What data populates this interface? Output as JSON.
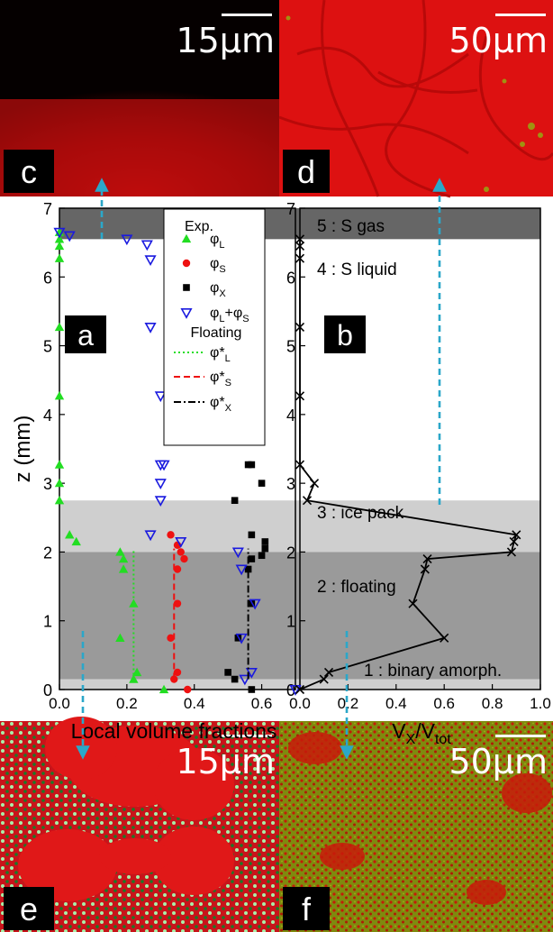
{
  "micrographs": {
    "c": {
      "label": "c",
      "scale": "15μm"
    },
    "d": {
      "label": "d",
      "scale": "50μm"
    },
    "e": {
      "label": "e",
      "scale": "15μm"
    },
    "f": {
      "label": "f",
      "scale": "50μm"
    }
  },
  "colors": {
    "phi_L": "#22dd22",
    "phi_S": "#ee1111",
    "phi_X": "#000000",
    "phi_LS": "#1a1adf",
    "arrow": "#2ba7c9",
    "zone_gas": "#666666",
    "zone_ice": "#cfcfcf",
    "zone_float": "#9a9a9a",
    "zone_amorph": "#cfcfcf"
  },
  "chart_data": [
    {
      "type": "scatter",
      "panel_label": "a",
      "xlabel": "Local volume fractions",
      "ylabel": "z (mm)",
      "xlim": [
        0,
        0.7
      ],
      "ylim": [
        0,
        7
      ],
      "xticks": [
        "0.0",
        "0.2",
        "0.4",
        "0.6"
      ],
      "yticks": [
        "0",
        "1",
        "2",
        "3",
        "4",
        "5",
        "6",
        "7"
      ],
      "legend": {
        "title_exp": "Exp.",
        "title_floating": "Floating",
        "entries": [
          "φL",
          "φS",
          "φX",
          "φL+φS",
          "φ*L",
          "φ*S",
          "φ*X"
        ]
      },
      "series": [
        {
          "name": "φL",
          "marker": "triangle-up",
          "points": [
            [
              0.0,
              6.65
            ],
            [
              0.0,
              6.55
            ],
            [
              0.0,
              6.45
            ],
            [
              0.0,
              6.27
            ],
            [
              0.0,
              5.27
            ],
            [
              0.0,
              4.27
            ],
            [
              0.0,
              3.27
            ],
            [
              0.0,
              3.0
            ],
            [
              0.0,
              2.75
            ],
            [
              0.03,
              2.25
            ],
            [
              0.05,
              2.15
            ],
            [
              0.18,
              2.0
            ],
            [
              0.19,
              1.9
            ],
            [
              0.19,
              1.75
            ],
            [
              0.22,
              1.25
            ],
            [
              0.18,
              0.75
            ],
            [
              0.23,
              0.25
            ],
            [
              0.22,
              0.15
            ],
            [
              0.31,
              0.0
            ]
          ]
        },
        {
          "name": "φS",
          "marker": "circle",
          "points": [
            [
              0.33,
              2.25
            ],
            [
              0.35,
              2.1
            ],
            [
              0.36,
              2.0
            ],
            [
              0.37,
              1.9
            ],
            [
              0.35,
              1.75
            ],
            [
              0.35,
              1.25
            ],
            [
              0.33,
              0.75
            ],
            [
              0.35,
              0.25
            ],
            [
              0.34,
              0.15
            ],
            [
              0.38,
              0.0
            ]
          ]
        },
        {
          "name": "φX",
          "marker": "square",
          "points": [
            [
              0.56,
              3.27
            ],
            [
              0.57,
              3.27
            ],
            [
              0.6,
              3.0
            ],
            [
              0.52,
              2.75
            ],
            [
              0.57,
              2.25
            ],
            [
              0.61,
              2.15
            ],
            [
              0.61,
              2.05
            ],
            [
              0.6,
              1.95
            ],
            [
              0.57,
              1.9
            ],
            [
              0.56,
              1.75
            ],
            [
              0.57,
              1.25
            ],
            [
              0.53,
              0.75
            ],
            [
              0.5,
              0.25
            ],
            [
              0.52,
              0.15
            ],
            [
              0.57,
              0.0
            ]
          ]
        },
        {
          "name": "φL+φS",
          "marker": "triangle-down",
          "points": [
            [
              0.0,
              6.65
            ],
            [
              0.03,
              6.6
            ],
            [
              0.2,
              6.55
            ],
            [
              0.26,
              6.47
            ],
            [
              0.27,
              6.25
            ],
            [
              0.27,
              5.27
            ],
            [
              0.3,
              4.27
            ],
            [
              0.31,
              3.27
            ],
            [
              0.3,
              3.27
            ],
            [
              0.3,
              3.0
            ],
            [
              0.3,
              2.75
            ],
            [
              0.27,
              2.25
            ],
            [
              0.36,
              2.15
            ],
            [
              0.53,
              2.0
            ],
            [
              0.54,
              1.75
            ],
            [
              0.58,
              1.25
            ],
            [
              0.54,
              0.75
            ],
            [
              0.57,
              0.25
            ],
            [
              0.55,
              0.15
            ],
            [
              0.7,
              0.0
            ]
          ]
        },
        {
          "name": "φ*L",
          "line": "dotted",
          "x": [
            0.22,
            0.22
          ],
          "z": [
            0.15,
            2.05
          ]
        },
        {
          "name": "φ*S",
          "line": "dashed",
          "x": [
            0.34,
            0.34
          ],
          "z": [
            0.15,
            2.05
          ]
        },
        {
          "name": "φ*X",
          "line": "dashdot",
          "x": [
            0.56,
            0.56
          ],
          "z": [
            0.15,
            2.05
          ]
        }
      ]
    },
    {
      "type": "line",
      "panel_label": "b",
      "xlabel": "VX/Vtot",
      "ylabel": "",
      "xlim": [
        0,
        1
      ],
      "ylim": [
        0,
        7
      ],
      "xticks": [
        "0.0",
        "0.2",
        "0.4",
        "0.6",
        "0.8",
        "1.0"
      ],
      "yticks": [
        "0",
        "1",
        "2",
        "3",
        "4",
        "5",
        "6",
        "7"
      ],
      "marker": "x",
      "points": [
        [
          0.0,
          6.55
        ],
        [
          0.0,
          6.45
        ],
        [
          0.0,
          6.27
        ],
        [
          0.0,
          5.27
        ],
        [
          0.0,
          4.27
        ],
        [
          0.0,
          3.27
        ],
        [
          0.06,
          3.0
        ],
        [
          0.03,
          2.75
        ],
        [
          0.9,
          2.25
        ],
        [
          0.89,
          2.15
        ],
        [
          0.88,
          2.0
        ],
        [
          0.53,
          1.9
        ],
        [
          0.52,
          1.75
        ],
        [
          0.47,
          1.25
        ],
        [
          0.6,
          0.75
        ],
        [
          0.12,
          0.25
        ],
        [
          0.1,
          0.15
        ],
        [
          0.0,
          0.0
        ]
      ],
      "zones": [
        {
          "label": "5 : S gas",
          "z0": 6.55,
          "z1": 7.0
        },
        {
          "label": "4 : S liquid",
          "z0": 2.75,
          "z1": 6.55
        },
        {
          "label": "3 :    ice pack",
          "z0": 2.0,
          "z1": 2.75
        },
        {
          "label": "2 : floating",
          "z0": 0.15,
          "z1": 2.0
        },
        {
          "label": "1 : binary amorph.",
          "z0": 0.0,
          "z1": 0.15
        }
      ]
    }
  ]
}
